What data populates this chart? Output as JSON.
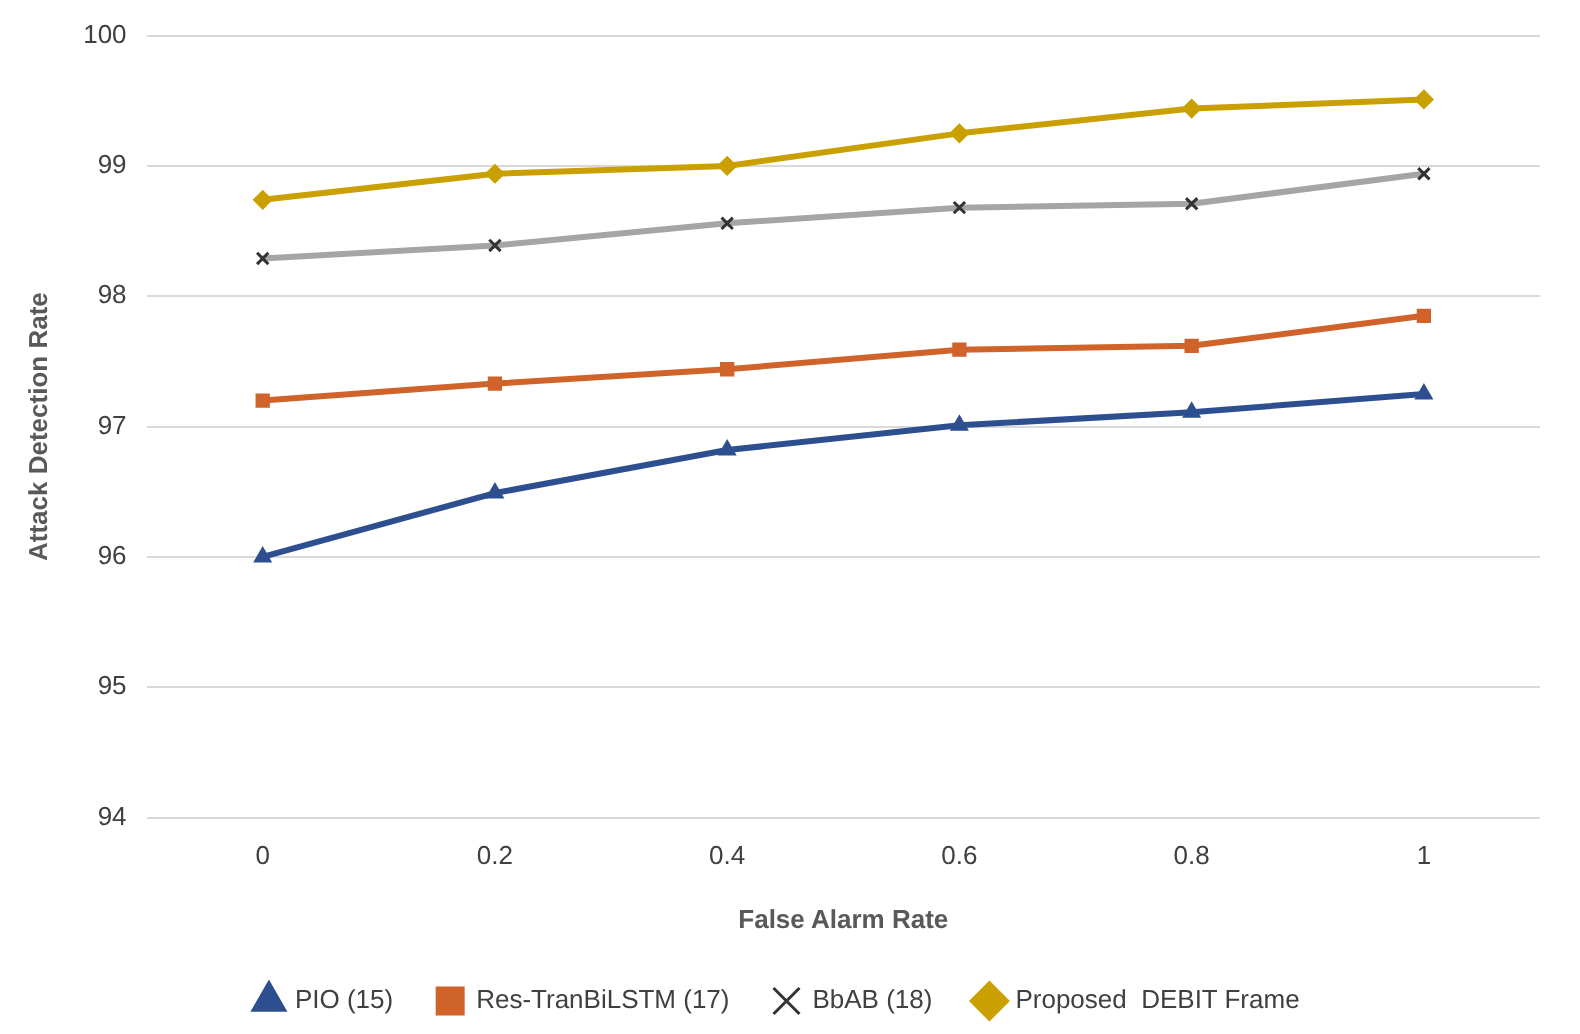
{
  "chart_data": {
    "type": "line",
    "xlabel": "False Alarm Rate",
    "ylabel": "Attack Detection Rate",
    "categories": [
      "0",
      "0.2",
      "0.4",
      "0.6",
      "0.8",
      "1"
    ],
    "series": [
      {
        "name": "PIO (15)",
        "color": "#2e4f8f",
        "marker": "triangle",
        "values": [
          96.0,
          96.49,
          96.82,
          97.01,
          97.11,
          97.25
        ]
      },
      {
        "name": "Res-TranBiLSTM (17)",
        "color": "#d0632a",
        "marker": "square",
        "values": [
          97.2,
          97.33,
          97.44,
          97.59,
          97.62,
          97.85
        ]
      },
      {
        "name": "BbAB (18)",
        "color": "#a5a5a5",
        "marker": "cross",
        "values": [
          98.29,
          98.39,
          98.56,
          98.68,
          98.71,
          98.94
        ]
      },
      {
        "name": "Proposed  DEBIT Frame",
        "color": "#c9a000",
        "marker": "diamond",
        "values": [
          98.74,
          98.94,
          99.0,
          99.25,
          99.44,
          99.51
        ]
      }
    ],
    "ylim": [
      94,
      100
    ],
    "yticks": [
      94,
      95,
      96,
      97,
      98,
      99,
      100
    ],
    "grid": "y",
    "legend": "bottom",
    "line_style": "solid"
  }
}
